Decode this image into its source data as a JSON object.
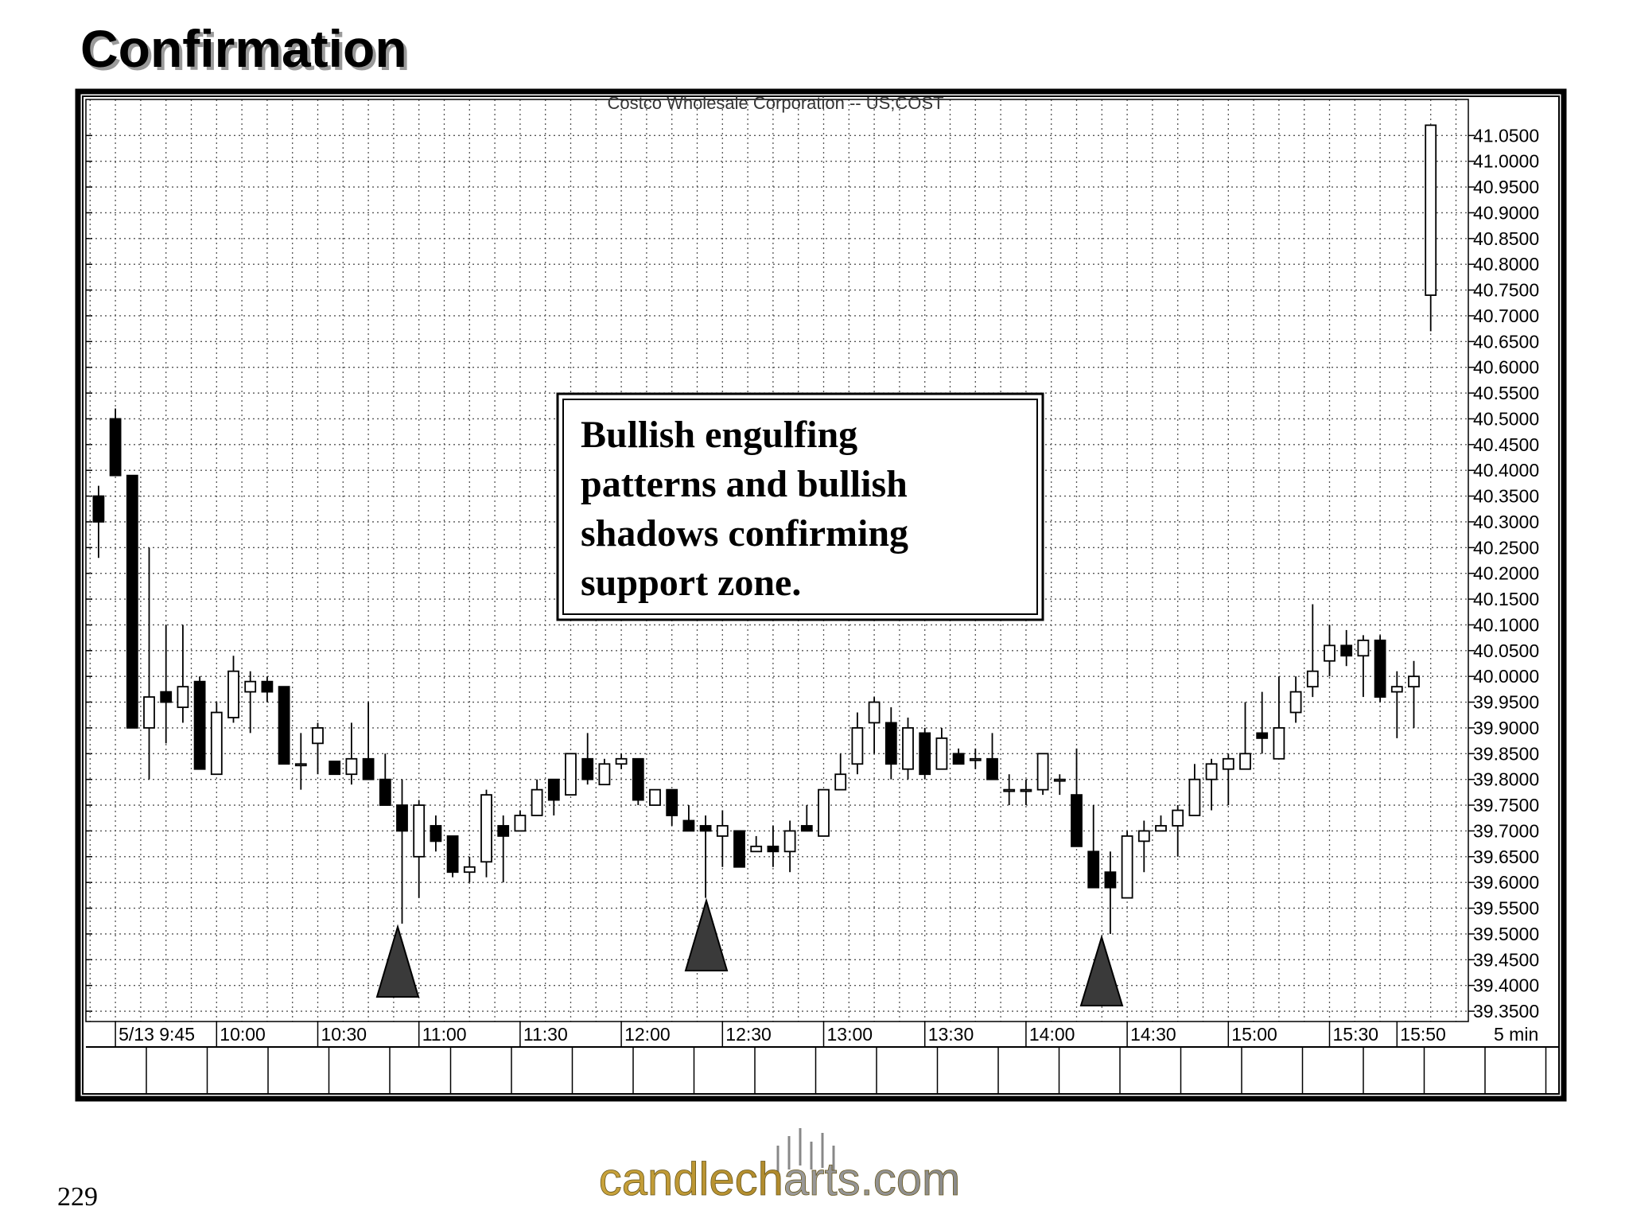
{
  "slide_title": "Confirmation",
  "page_number": "229",
  "logo": "candlecharts.com",
  "annotation": [
    "Bullish engulfing",
    "patterns and bullish",
    "shadows confirming",
    "support zone."
  ],
  "chart_data": {
    "type": "candlestick",
    "title": "Costco  Wholesale  Corporation  --  US;COST",
    "interval_label": "5  min",
    "categories": [
      null,
      "5/13 9:45",
      null,
      null,
      null,
      null,
      null,
      "10:00",
      null,
      null,
      null,
      null,
      null,
      "10:30",
      null,
      null,
      null,
      null,
      null,
      "11:00",
      null,
      null,
      null,
      null,
      null,
      "11:30",
      null,
      null,
      null,
      null,
      null,
      "12:00",
      null,
      null,
      null,
      null,
      null,
      "12:30",
      null,
      null,
      null,
      null,
      null,
      "13:00",
      null,
      null,
      null,
      null,
      null,
      "13:30",
      null,
      null,
      null,
      null,
      null,
      "14:00",
      null,
      null,
      null,
      null,
      null,
      "14:30",
      null,
      null,
      null,
      null,
      null,
      "15:00",
      null,
      null,
      null,
      null,
      null,
      "15:30",
      null,
      null,
      null,
      "15:50",
      null,
      null
    ],
    "open": [
      40.35,
      40.5,
      40.39,
      39.9,
      39.97,
      39.94,
      39.99,
      39.81,
      39.92,
      39.97,
      39.99,
      39.98,
      39.83,
      39.87,
      39.835,
      39.81,
      39.84,
      39.8,
      39.75,
      39.65,
      39.71,
      39.69,
      39.62,
      39.64,
      39.71,
      39.7,
      39.73,
      39.8,
      39.77,
      39.84,
      39.79,
      39.83,
      39.84,
      39.75,
      39.78,
      39.72,
      39.71,
      39.69,
      39.7,
      39.66,
      39.67,
      39.66,
      39.71,
      39.69,
      39.78,
      39.83,
      39.91,
      39.91,
      39.82,
      39.89,
      39.82,
      39.85,
      39.84,
      39.84,
      39.78,
      39.78,
      39.78,
      39.8,
      39.77,
      39.66,
      39.62,
      39.57,
      39.68,
      39.7,
      39.71,
      39.73,
      39.8,
      39.82,
      39.82,
      39.89,
      39.84,
      39.93,
      39.98,
      40.03,
      40.06,
      40.04,
      40.07,
      39.97,
      39.98,
      40.74
    ],
    "high": [
      40.37,
      40.52,
      40.39,
      40.25,
      40.1,
      40.1,
      40.0,
      39.95,
      40.04,
      40.01,
      40.0,
      39.98,
      39.89,
      39.91,
      39.835,
      39.91,
      39.95,
      39.85,
      39.8,
      39.76,
      39.73,
      39.69,
      39.65,
      39.78,
      39.73,
      39.74,
      39.8,
      39.8,
      39.85,
      39.89,
      39.84,
      39.85,
      39.84,
      39.78,
      39.78,
      39.75,
      39.73,
      39.74,
      39.7,
      39.69,
      39.71,
      39.72,
      39.75,
      39.78,
      39.85,
      39.93,
      39.96,
      39.94,
      39.92,
      39.9,
      39.9,
      39.86,
      39.86,
      39.89,
      39.81,
      39.8,
      39.85,
      39.81,
      39.86,
      39.75,
      39.66,
      39.7,
      39.72,
      39.73,
      39.75,
      39.83,
      39.84,
      39.85,
      39.95,
      39.97,
      40.0,
      40.0,
      40.14,
      40.1,
      40.09,
      40.08,
      40.08,
      40.01,
      40.03,
      41.07
    ],
    "low": [
      40.23,
      40.39,
      39.9,
      39.8,
      39.87,
      39.91,
      39.82,
      39.81,
      39.91,
      39.89,
      39.95,
      39.83,
      39.78,
      39.81,
      39.81,
      39.79,
      39.8,
      39.75,
      39.52,
      39.57,
      39.66,
      39.61,
      39.6,
      39.61,
      39.6,
      39.7,
      39.73,
      39.73,
      39.77,
      39.79,
      39.79,
      39.82,
      39.75,
      39.75,
      39.71,
      39.7,
      39.57,
      39.63,
      39.63,
      39.66,
      39.63,
      39.62,
      39.7,
      39.69,
      39.78,
      39.81,
      39.85,
      39.8,
      39.8,
      39.8,
      39.82,
      39.83,
      39.82,
      39.8,
      39.75,
      39.75,
      39.77,
      39.77,
      39.67,
      39.59,
      39.5,
      39.57,
      39.62,
      39.7,
      39.65,
      39.73,
      39.74,
      39.75,
      39.82,
      39.85,
      39.84,
      39.91,
      39.96,
      40.0,
      40.02,
      39.96,
      39.95,
      39.88,
      39.9,
      40.67
    ],
    "close": [
      40.3,
      40.39,
      39.9,
      39.96,
      39.95,
      39.98,
      39.82,
      39.93,
      40.01,
      39.99,
      39.97,
      39.83,
      39.83,
      39.9,
      39.81,
      39.84,
      39.8,
      39.75,
      39.7,
      39.75,
      39.68,
      39.62,
      39.63,
      39.77,
      39.69,
      39.73,
      39.78,
      39.76,
      39.85,
      39.8,
      39.83,
      39.84,
      39.76,
      39.78,
      39.73,
      39.7,
      39.7,
      39.71,
      39.63,
      39.67,
      39.66,
      39.7,
      39.7,
      39.78,
      39.81,
      39.9,
      39.95,
      39.83,
      39.9,
      39.81,
      39.88,
      39.83,
      39.84,
      39.8,
      39.78,
      39.78,
      39.85,
      39.8,
      39.67,
      39.59,
      39.59,
      39.69,
      39.7,
      39.71,
      39.74,
      39.8,
      39.83,
      39.84,
      39.85,
      39.88,
      39.9,
      39.97,
      40.01,
      40.06,
      40.04,
      40.07,
      39.96,
      39.98,
      40.0,
      41.07
    ],
    "up_color": "#ffffff",
    "down_color": "#000000",
    "ylim": [
      39.33,
      41.12
    ],
    "yticks": [
      {
        "value": 39.35,
        "label": "39.3500"
      },
      {
        "value": 39.4,
        "label": "39.4000"
      },
      {
        "value": 39.45,
        "label": "39.4500"
      },
      {
        "value": 39.5,
        "label": "39.5000"
      },
      {
        "value": 39.55,
        "label": "39.5500"
      },
      {
        "value": 39.6,
        "label": "39.6000"
      },
      {
        "value": 39.65,
        "label": "39.6500"
      },
      {
        "value": 39.7,
        "label": "39.7000"
      },
      {
        "value": 39.75,
        "label": "39.7500"
      },
      {
        "value": 39.8,
        "label": "39.8000"
      },
      {
        "value": 39.85,
        "label": "39.8500"
      },
      {
        "value": 39.9,
        "label": "39.9000"
      },
      {
        "value": 39.95,
        "label": "39.9500"
      },
      {
        "value": 40,
        "label": "40.0000"
      },
      {
        "value": 40.05,
        "label": "40.0500"
      },
      {
        "value": 40.1,
        "label": "40.1000"
      },
      {
        "value": 40.15,
        "label": "40.1500"
      },
      {
        "value": 40.2,
        "label": "40.2000"
      },
      {
        "value": 40.25,
        "label": "40.2500"
      },
      {
        "value": 40.3,
        "label": "40.3000"
      },
      {
        "value": 40.35,
        "label": "40.3500"
      },
      {
        "value": 40.4,
        "label": "40.4000"
      },
      {
        "value": 40.45,
        "label": "40.4500"
      },
      {
        "value": 40.5,
        "label": "40.5000"
      },
      {
        "value": 40.55,
        "label": "40.5500"
      },
      {
        "value": 40.6,
        "label": "40.6000"
      },
      {
        "value": 40.65,
        "label": "40.6500"
      },
      {
        "value": 40.7,
        "label": "40.7000"
      },
      {
        "value": 40.75,
        "label": "40.7500"
      },
      {
        "value": 40.8,
        "label": "40.8000"
      },
      {
        "value": 40.85,
        "label": "40.8500"
      },
      {
        "value": 40.9,
        "label": "40.9000"
      },
      {
        "value": 40.95,
        "label": "40.9500"
      },
      {
        "value": 41,
        "label": "41.0000"
      },
      {
        "value": 41.05,
        "label": "41.0500"
      }
    ],
    "grid": true
  }
}
